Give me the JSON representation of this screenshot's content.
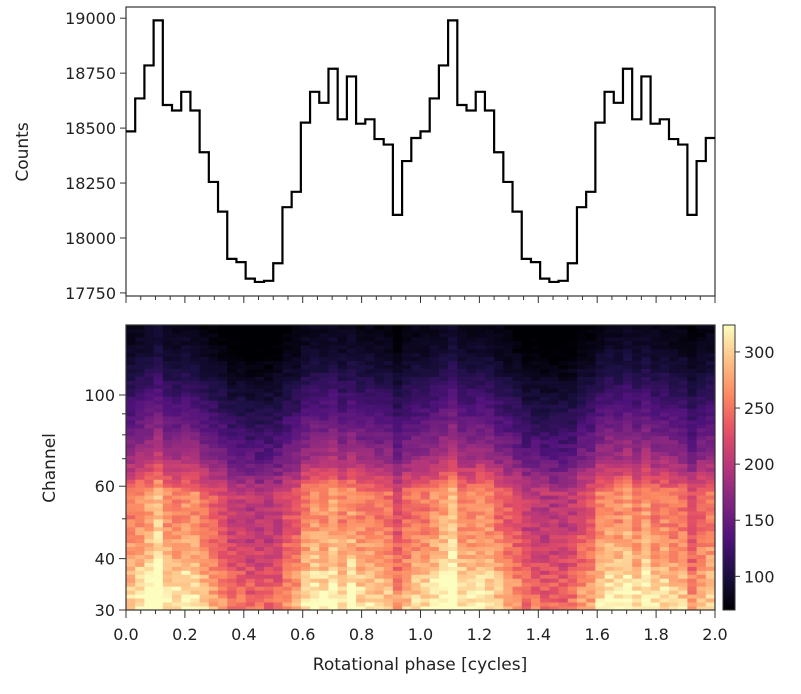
{
  "chart_data": [
    {
      "type": "line",
      "step": true,
      "xlabel": "",
      "ylabel": "Counts",
      "xlim": [
        0.0,
        2.0
      ],
      "ylim": [
        17736,
        19051
      ],
      "yticks": [
        17750,
        18000,
        18250,
        18500,
        18750,
        19000
      ],
      "ytick_labels": [
        "17750",
        "18000",
        "18250",
        "18500",
        "18750",
        "19000"
      ],
      "bins_per_cycle": 32,
      "line_color": "#000000",
      "cycle_values": [
        18485,
        18635,
        18785,
        18990,
        18605,
        18580,
        18665,
        18580,
        18390,
        18255,
        18120,
        17905,
        17890,
        17815,
        17800,
        17805,
        17885,
        18140,
        18210,
        18525,
        18665,
        18615,
        18770,
        18540,
        18735,
        18520,
        18540,
        18450,
        18425,
        18105,
        18350,
        18455
      ],
      "cycles": 2,
      "grid": false
    },
    {
      "type": "heatmap",
      "xlabel": "Rotational phase [cycles]",
      "ylabel": "Channel",
      "xlim": [
        0.0,
        2.0
      ],
      "ylim": [
        30,
        148
      ],
      "yscale": "log",
      "xticks": [
        0.0,
        0.2,
        0.4,
        0.6,
        0.8,
        1.0,
        1.2,
        1.4,
        1.6,
        1.8,
        2.0
      ],
      "xtick_labels": [
        "0.0",
        "0.2",
        "0.4",
        "0.6",
        "0.8",
        "1.0",
        "1.2",
        "1.4",
        "1.6",
        "1.8",
        "2.0"
      ],
      "yticks": [
        30,
        40,
        60,
        100
      ],
      "ytick_labels": [
        "30",
        "40",
        "60",
        "100"
      ],
      "colormap": "magma",
      "colorbar": {
        "range": [
          70,
          324
        ],
        "ticks": [
          100,
          150,
          200,
          250,
          300
        ],
        "tick_labels": [
          "100",
          "150",
          "200",
          "250",
          "300"
        ]
      },
      "mean_profile": {
        "channel": [
          30,
          35,
          40,
          50,
          58,
          62,
          70,
          80,
          90,
          100,
          115,
          130,
          148
        ],
        "value": [
          300,
          285,
          265,
          245,
          245,
          215,
          175,
          150,
          130,
          115,
          95,
          82,
          75
        ]
      },
      "phase_bins": 64
    }
  ]
}
